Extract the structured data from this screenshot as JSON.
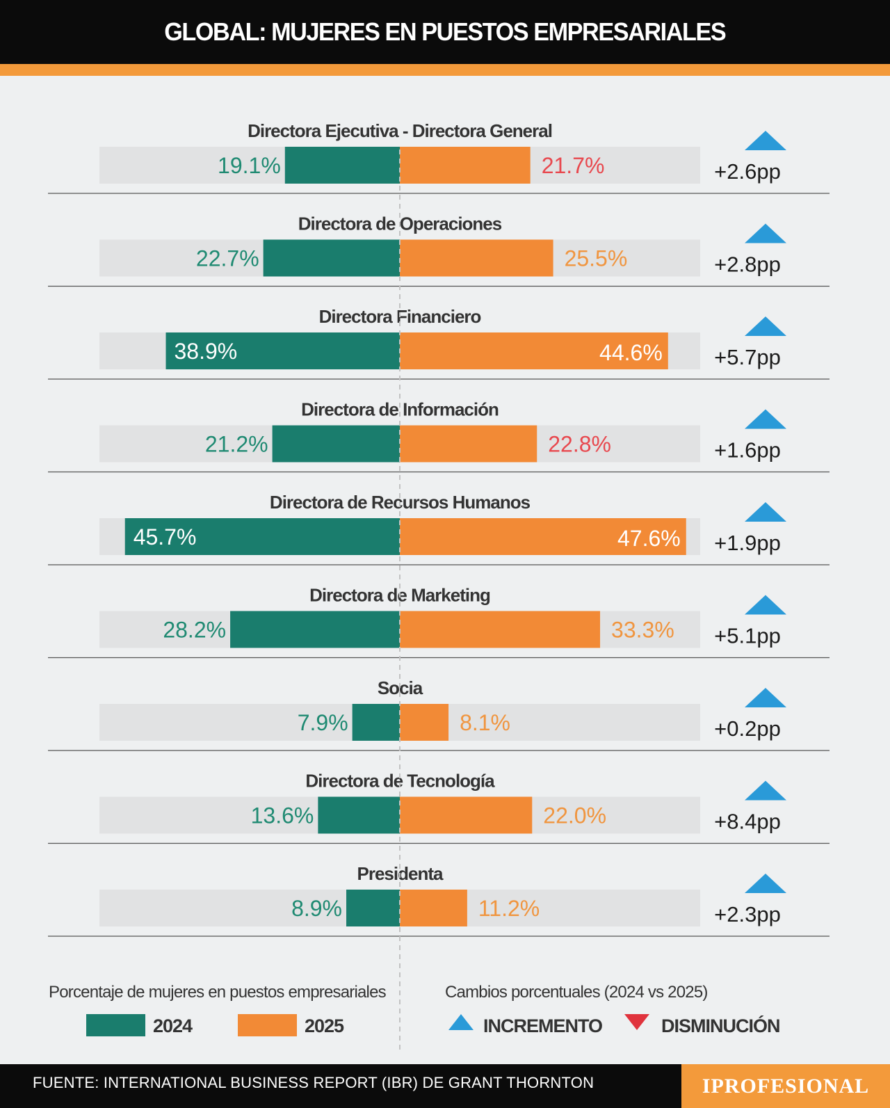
{
  "header": {
    "title": "GLOBAL: MUJERES EN PUESTOS EMPRESARIALES"
  },
  "colors": {
    "y2024": "#1a7d6d",
    "y2025": "#f28a36",
    "label_2024": "#1f8a72",
    "label_2025_orange": "#f0953f",
    "label_2025_red": "#e8484e",
    "increase": "#2a9ad8",
    "decrease": "#e0333d",
    "track": "#e1e2e3"
  },
  "chart_data": {
    "type": "bar",
    "categories": [
      "Directora Ejecutiva - Directora General",
      "Directora de  Operaciones",
      "Directora Financiero",
      "Directora de Información",
      "Directora de Recursos Humanos",
      "Directora de Marketing",
      "Socia",
      "Directora de Tecnología",
      "Presidenta"
    ],
    "series": [
      {
        "name": "2024",
        "values": [
          19.1,
          22.7,
          38.9,
          21.2,
          45.7,
          28.2,
          7.9,
          13.6,
          8.9
        ],
        "labels": [
          "19.1%",
          "22.7%",
          "38.9%",
          "21.2%",
          "45.7%",
          "28.2%",
          "7.9%",
          "13.6%",
          "8.9%"
        ]
      },
      {
        "name": "2025",
        "values": [
          21.7,
          25.5,
          44.6,
          22.8,
          47.6,
          33.3,
          8.1,
          22.0,
          11.2
        ],
        "labels": [
          "21.7%",
          "25.5%",
          "44.6%",
          "22.8%",
          "47.6%",
          "33.3%",
          "8.1%",
          "22.0%",
          "11.2%"
        ],
        "label_colors": [
          "red",
          "orange",
          "white",
          "red",
          "white",
          "orange",
          "orange",
          "orange",
          "orange"
        ]
      }
    ],
    "changes": [
      "+2.6pp",
      "+2.8pp",
      "+5.7pp",
      "+1.6pp",
      "+1.9pp",
      "+5.1pp",
      "+0.2pp",
      "+8.4pp",
      "+2.3pp"
    ],
    "change_direction": [
      "up",
      "up",
      "up",
      "up",
      "up",
      "up",
      "up",
      "up",
      "up"
    ],
    "xlim": [
      0,
      50
    ]
  },
  "legend": {
    "left_title": "Porcentaje de mujeres en puestos empresariales",
    "items": [
      "2024",
      "2025"
    ],
    "right_title": "Cambios porcentuales (2024 vs 2025)",
    "increase_label": "INCREMENTO",
    "decrease_label": "DISMINUCIÓN"
  },
  "footer": {
    "source": "FUENTE: INTERNATIONAL BUSINESS REPORT (IBR)  DE GRANT THORNTON",
    "brand": "IPROFESIONAL"
  }
}
